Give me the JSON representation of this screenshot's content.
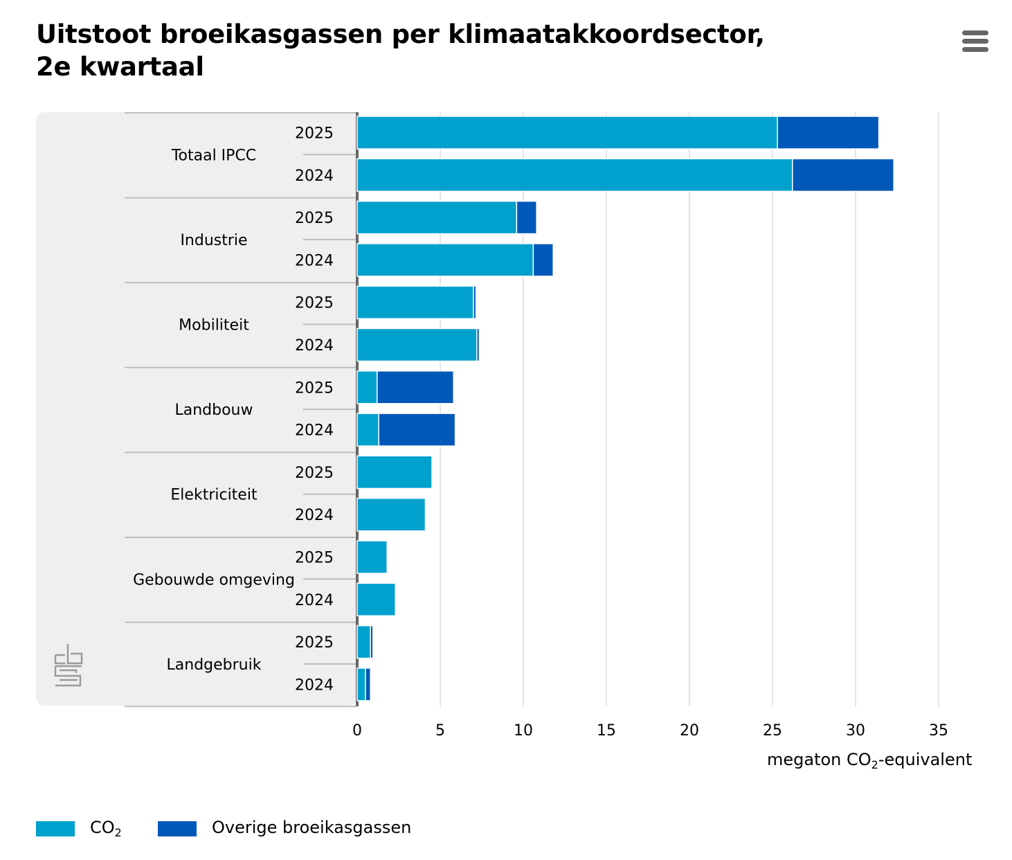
{
  "title": "Uitstoot broeikasgassen per klimaatakkoordsector, 2e kwartaal",
  "menu_icon": "hamburger-menu-icon",
  "colors": {
    "co2": "#00a1cd",
    "overige": "#0058b8",
    "panel": "#efefef",
    "grid": "#c8c8c8",
    "axis": "#666666"
  },
  "legend": {
    "co2_prefix": "CO",
    "co2_sub": "2",
    "overige": "Overige broeikasgassen"
  },
  "axis": {
    "unit_prefix": "megaton CO",
    "unit_sub": "2",
    "unit_suffix": "-equivalent"
  },
  "logo": "cbs-logo",
  "chart_data": {
    "type": "bar",
    "orientation": "horizontal",
    "stacked": true,
    "title": "Uitstoot broeikasgassen per klimaatakkoordsector, 2e kwartaal",
    "xlabel": "megaton CO2-equivalent",
    "xlim": [
      0,
      35
    ],
    "xticks": [
      0,
      5,
      10,
      15,
      20,
      25,
      30,
      35
    ],
    "grid": true,
    "legend_position": "bottom-left",
    "groups": [
      "Totaal IPCC",
      "Industrie",
      "Mobiliteit",
      "Landbouw",
      "Elektriciteit",
      "Gebouwde omgeving",
      "Landgebruik"
    ],
    "categories": [
      "2025",
      "2024"
    ],
    "series": [
      {
        "name": "CO2",
        "values": [
          [
            25.3,
            26.2
          ],
          [
            9.6,
            10.6
          ],
          [
            7.0,
            7.2
          ],
          [
            1.2,
            1.3
          ],
          [
            4.5,
            4.1
          ],
          [
            1.8,
            2.3
          ],
          [
            0.8,
            0.5
          ]
        ]
      },
      {
        "name": "Overige broeikasgassen",
        "values": [
          [
            6.1,
            6.1
          ],
          [
            1.2,
            1.2
          ],
          [
            0.15,
            0.15
          ],
          [
            4.6,
            4.6
          ],
          [
            0.0,
            0.0
          ],
          [
            0.0,
            0.0
          ],
          [
            0.15,
            0.3
          ]
        ]
      }
    ]
  }
}
